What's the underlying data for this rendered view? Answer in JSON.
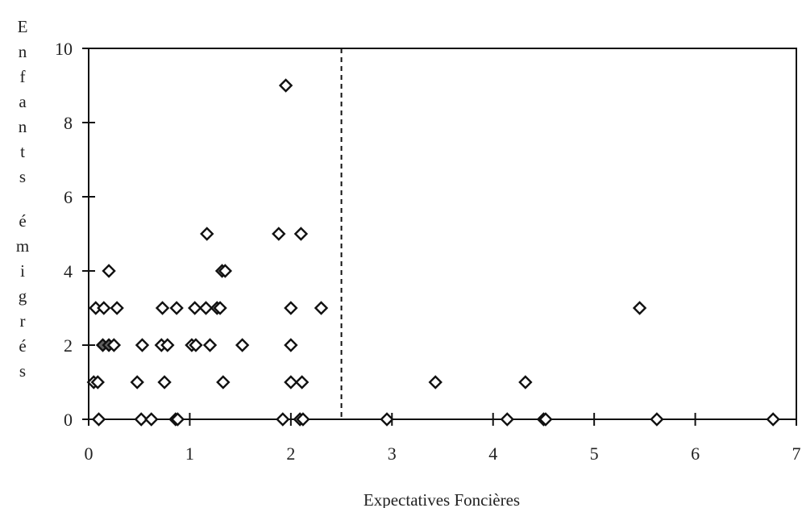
{
  "chart_data": {
    "type": "scatter",
    "title": "",
    "xlabel": "Expectatives Foncières",
    "ylabel": "Enfants émigrés",
    "xlim": [
      0,
      7
    ],
    "ylim": [
      0,
      10
    ],
    "x_ticks": [
      0,
      1,
      2,
      3,
      4,
      5,
      6,
      7
    ],
    "y_ticks": [
      0,
      2,
      4,
      6,
      8,
      10
    ],
    "grid": false,
    "legend": "none",
    "reference_line": {
      "x": 2.5,
      "style": "dashed"
    },
    "colors": {
      "axis": "#111111",
      "marker_stroke": "#111111",
      "marker_fill": "#ffffff",
      "highlight_fill": "#606060"
    },
    "marker": "diamond",
    "points": [
      {
        "x": 0.05,
        "y": 1
      },
      {
        "x": 0.09,
        "y": 1
      },
      {
        "x": 0.1,
        "y": 0
      },
      {
        "x": 0.52,
        "y": 0
      },
      {
        "x": 0.62,
        "y": 0
      },
      {
        "x": 0.86,
        "y": 0
      },
      {
        "x": 0.88,
        "y": 0
      },
      {
        "x": 1.92,
        "y": 0
      },
      {
        "x": 2.09,
        "y": 0
      },
      {
        "x": 2.12,
        "y": 0
      },
      {
        "x": 2.95,
        "y": 0
      },
      {
        "x": 4.14,
        "y": 0
      },
      {
        "x": 4.5,
        "y": 0
      },
      {
        "x": 4.52,
        "y": 0
      },
      {
        "x": 5.62,
        "y": 0
      },
      {
        "x": 6.77,
        "y": 0
      },
      {
        "x": 0.48,
        "y": 1
      },
      {
        "x": 0.75,
        "y": 1
      },
      {
        "x": 1.33,
        "y": 1
      },
      {
        "x": 2.0,
        "y": 1
      },
      {
        "x": 2.11,
        "y": 1
      },
      {
        "x": 3.43,
        "y": 1
      },
      {
        "x": 4.32,
        "y": 1
      },
      {
        "x": 0.14,
        "y": 2,
        "highlight": true
      },
      {
        "x": 0.2,
        "y": 2,
        "highlight": true
      },
      {
        "x": 0.25,
        "y": 2
      },
      {
        "x": 0.53,
        "y": 2
      },
      {
        "x": 0.72,
        "y": 2
      },
      {
        "x": 0.78,
        "y": 2
      },
      {
        "x": 1.02,
        "y": 2
      },
      {
        "x": 1.06,
        "y": 2
      },
      {
        "x": 1.2,
        "y": 2
      },
      {
        "x": 1.52,
        "y": 2
      },
      {
        "x": 2.0,
        "y": 2
      },
      {
        "x": 0.07,
        "y": 3
      },
      {
        "x": 0.15,
        "y": 3
      },
      {
        "x": 0.28,
        "y": 3
      },
      {
        "x": 0.73,
        "y": 3
      },
      {
        "x": 0.87,
        "y": 3
      },
      {
        "x": 1.05,
        "y": 3
      },
      {
        "x": 1.16,
        "y": 3
      },
      {
        "x": 1.27,
        "y": 3
      },
      {
        "x": 1.3,
        "y": 3
      },
      {
        "x": 2.0,
        "y": 3
      },
      {
        "x": 2.3,
        "y": 3
      },
      {
        "x": 5.45,
        "y": 3
      },
      {
        "x": 0.2,
        "y": 4
      },
      {
        "x": 1.32,
        "y": 4
      },
      {
        "x": 1.35,
        "y": 4
      },
      {
        "x": 1.17,
        "y": 5
      },
      {
        "x": 1.88,
        "y": 5
      },
      {
        "x": 2.1,
        "y": 5
      },
      {
        "x": 1.95,
        "y": 9
      }
    ]
  },
  "axis_labels": {
    "y_letters": [
      "E",
      "n",
      "f",
      "a",
      "n",
      "t",
      "s",
      "é",
      "m",
      "i",
      "g",
      "r",
      "é",
      "s"
    ]
  }
}
